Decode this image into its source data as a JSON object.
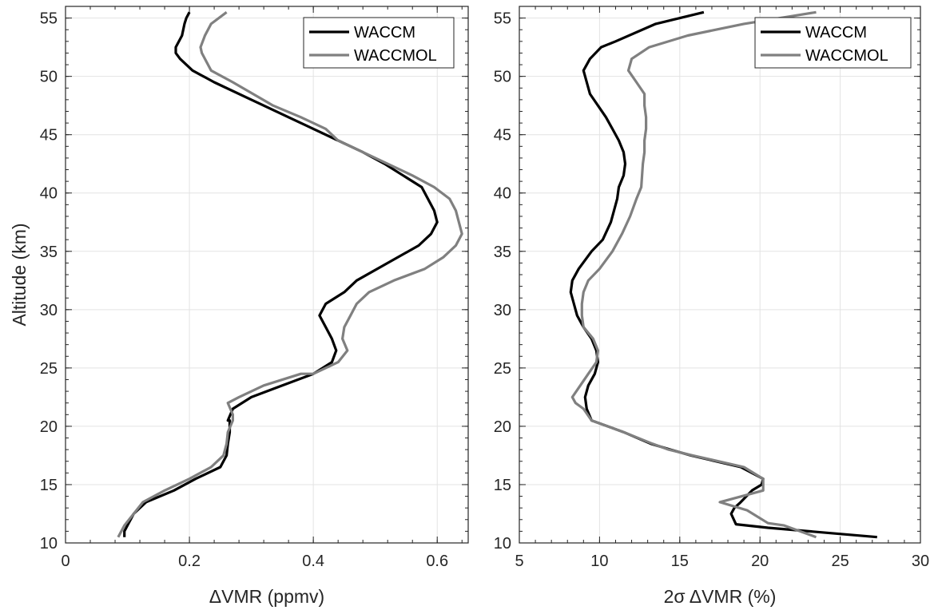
{
  "colors": {
    "waccm": "#000000",
    "waccmol": "#808080",
    "grid": "#e3e3e3",
    "axis": "#262626"
  },
  "chart_data": [
    {
      "type": "line",
      "xlabel": "ΔVMR (ppmv)",
      "ylabel": "Altitude (km)",
      "xlim": [
        0,
        0.65
      ],
      "ylim": [
        10,
        56
      ],
      "xticks": [
        0,
        0.2,
        0.4,
        0.6
      ],
      "xtick_labels": [
        "0",
        "0.2",
        "0.4",
        "0.6"
      ],
      "yticks": [
        10,
        15,
        20,
        25,
        30,
        35,
        40,
        45,
        50,
        55
      ],
      "ytick_labels": [
        "10",
        "15",
        "20",
        "25",
        "30",
        "35",
        "40",
        "45",
        "50",
        "55"
      ],
      "grid": true,
      "legend": "top-right",
      "series": [
        {
          "name": "WACCM",
          "color": "#000000",
          "x": [
            0.095,
            0.095,
            0.1,
            0.11,
            0.13,
            0.175,
            0.21,
            0.25,
            0.26,
            0.262,
            0.265,
            0.265,
            0.262,
            0.27,
            0.3,
            0.35,
            0.4,
            0.43,
            0.437,
            0.43,
            0.42,
            0.41,
            0.42,
            0.45,
            0.47,
            0.52,
            0.57,
            0.59,
            0.6,
            0.595,
            0.575,
            0.545,
            0.515,
            0.48,
            0.44,
            0.4,
            0.36,
            0.3,
            0.24,
            0.205,
            0.185,
            0.178,
            0.178,
            0.188,
            0.192,
            0.195,
            0.2
          ],
          "y": [
            10.5,
            11,
            11.5,
            12.5,
            13.5,
            14.5,
            15.5,
            16.5,
            17.5,
            18.5,
            19.5,
            20.5,
            20.5,
            21.5,
            22.5,
            23.5,
            24.5,
            25.5,
            26.5,
            27.5,
            28.5,
            29.5,
            30.5,
            31.5,
            32.5,
            34,
            35.5,
            36.5,
            37.5,
            38.5,
            40.5,
            41.5,
            42.5,
            43.5,
            44.5,
            45.5,
            46.5,
            48,
            49.5,
            50.5,
            51.5,
            52,
            52.5,
            53.5,
            54.5,
            55,
            55.5
          ]
        },
        {
          "name": "WACCMOL",
          "color": "#808080",
          "x": [
            0.085,
            0.095,
            0.11,
            0.125,
            0.16,
            0.2,
            0.235,
            0.255,
            0.26,
            0.262,
            0.27,
            0.27,
            0.262,
            0.28,
            0.32,
            0.38,
            0.4,
            0.44,
            0.455,
            0.447,
            0.45,
            0.46,
            0.47,
            0.49,
            0.53,
            0.58,
            0.61,
            0.63,
            0.64,
            0.63,
            0.62,
            0.595,
            0.56,
            0.52,
            0.48,
            0.44,
            0.42,
            0.38,
            0.335,
            0.27,
            0.235,
            0.225,
            0.22,
            0.218,
            0.225,
            0.235,
            0.26
          ],
          "y": [
            10.5,
            11.5,
            12.5,
            13.5,
            14.5,
            15.5,
            16.5,
            17.5,
            18.5,
            19.5,
            20.5,
            21,
            22,
            22.5,
            23.5,
            24.5,
            24.5,
            25.5,
            26.5,
            27.5,
            28.5,
            29.5,
            30.5,
            31.5,
            32.5,
            33.5,
            34.5,
            35.5,
            36.5,
            38.5,
            39.5,
            40.5,
            41.5,
            42.5,
            43.5,
            44.5,
            45.5,
            46.5,
            47.5,
            49.5,
            50.5,
            51.5,
            52,
            52.5,
            53.5,
            54.5,
            55.5
          ]
        }
      ]
    },
    {
      "type": "line",
      "xlabel": "2σ ΔVMR (%)",
      "ylabel": "",
      "xlim": [
        5,
        30
      ],
      "ylim": [
        10,
        56
      ],
      "xticks": [
        5,
        10,
        15,
        20,
        25,
        30
      ],
      "xtick_labels": [
        "5",
        "10",
        "15",
        "20",
        "25",
        "30"
      ],
      "yticks": [
        10,
        15,
        20,
        25,
        30,
        35,
        40,
        45,
        50,
        55
      ],
      "ytick_labels": [
        "10",
        "15",
        "20",
        "25",
        "30",
        "35",
        "40",
        "45",
        "50",
        "55"
      ],
      "grid": true,
      "legend": "top-right",
      "series": [
        {
          "name": "WACCM",
          "color": "#000000",
          "x": [
            27.3,
            20.5,
            18.5,
            18.2,
            18.4,
            18.8,
            19.5,
            20.1,
            20.2,
            18.8,
            15.7,
            14.4,
            13.2,
            11.5,
            9.5,
            9.2,
            9.1,
            9.3,
            9.7,
            9.9,
            9.8,
            9.5,
            9.0,
            8.6,
            8.4,
            8.2,
            8.3,
            8.7,
            9.5,
            10.2,
            10.7,
            10.9,
            11.1,
            11.2,
            11.5,
            11.6,
            11.5,
            11.2,
            10.8,
            10.4,
            9.9,
            9.4,
            9.0,
            9.4,
            10.1,
            11.0,
            13.5,
            16.5
          ],
          "y": [
            10.5,
            11.3,
            11.6,
            12.5,
            13,
            13.5,
            14.5,
            15,
            15.5,
            16.5,
            17.5,
            18,
            18.5,
            19.5,
            20.5,
            21.5,
            22.5,
            23.5,
            24.5,
            25.5,
            26.5,
            27.5,
            28.5,
            29.5,
            30.5,
            31.5,
            32.5,
            33.5,
            35,
            36,
            37.5,
            38.5,
            39.5,
            40.5,
            41.5,
            42.5,
            43.5,
            44.5,
            45.5,
            46.5,
            47.5,
            48.5,
            50.5,
            51.5,
            52.5,
            53,
            54.5,
            55.5
          ]
        },
        {
          "name": "WACCMOL",
          "color": "#808080",
          "x": [
            23.5,
            21.5,
            20.5,
            19.2,
            17.5,
            20.2,
            20.2,
            19.0,
            15.8,
            14.3,
            13.3,
            11.5,
            9.5,
            9.0,
            8.5,
            8.3,
            8.8,
            9.3,
            9.8,
            9.9,
            9.6,
            9.0,
            8.9,
            8.9,
            9.0,
            9.3,
            10.0,
            10.8,
            11.4,
            11.9,
            12.3,
            12.6,
            12.7,
            12.8,
            12.8,
            12.9,
            12.9,
            12.8,
            12.8,
            12.3,
            11.8,
            12.0,
            13.1,
            15.5,
            19.0,
            23.5
          ],
          "y": [
            10.5,
            11.5,
            11.7,
            12.8,
            13.5,
            14.5,
            15.5,
            16.5,
            17.5,
            18,
            18.5,
            19.5,
            20.5,
            21.5,
            22,
            22.5,
            23.5,
            24.5,
            25.5,
            26.5,
            27.5,
            28.5,
            29.5,
            30.5,
            31.5,
            32.5,
            33.5,
            35,
            36.5,
            38,
            39.5,
            40.5,
            42.5,
            43.5,
            44.5,
            45.5,
            46.5,
            47.5,
            48.5,
            49.5,
            50.5,
            51.5,
            52.5,
            53.5,
            54.5,
            55.5
          ]
        }
      ]
    }
  ]
}
